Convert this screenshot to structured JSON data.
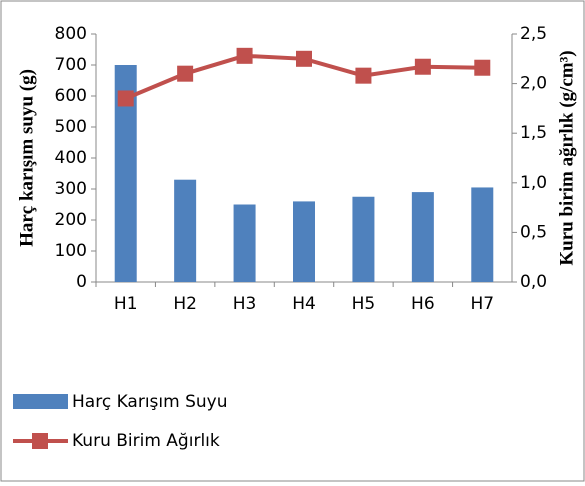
{
  "chart_data": {
    "type": "bar_line",
    "categories": [
      "H1",
      "H2",
      "H3",
      "H4",
      "H5",
      "H6",
      "H7"
    ],
    "series": [
      {
        "name": "Harç Karışım Suyu",
        "color": "#4f81bd",
        "values": [
          700,
          330,
          250,
          260,
          275,
          290,
          305
        ]
      },
      {
        "name": "Kuru Birim Ağırlık",
        "color": "#c0504d",
        "axis": "y2",
        "values": [
          1.85,
          2.1,
          2.28,
          2.25,
          2.08,
          2.17,
          2.16
        ]
      }
    ],
    "y_label": "Harç karışım suyu (g)",
    "y2_label": "Kuru birim ağırlık (g/cm³)",
    "ylim": [
      0,
      800
    ],
    "yticks": [
      0,
      100,
      200,
      300,
      400,
      500,
      600,
      700,
      800
    ],
    "y2lim": [
      0,
      2.5
    ],
    "y2ticks": [
      {
        "value": 0,
        "label": "0,0"
      },
      {
        "value": 0.5,
        "label": "0,5"
      },
      {
        "value": 1,
        "label": "1,0"
      },
      {
        "value": 1.5,
        "label": "1,5"
      },
      {
        "value": 2,
        "label": "2,0"
      },
      {
        "value": 2.5,
        "label": "2,5"
      }
    ],
    "legend": "bottom-left"
  }
}
